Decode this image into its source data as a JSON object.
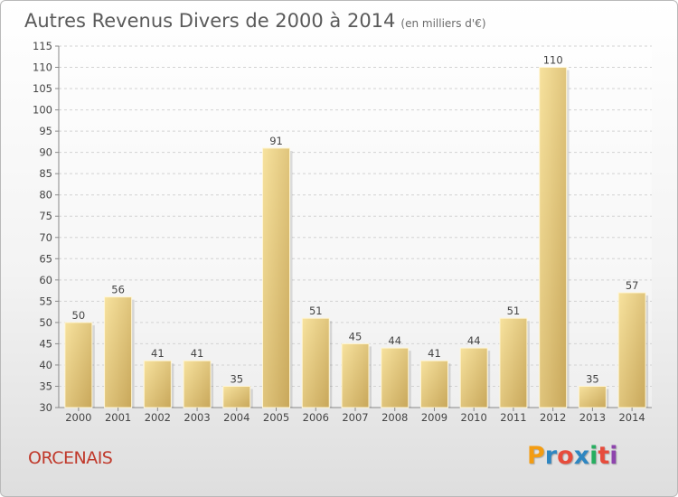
{
  "header": {
    "title": "Autres Revenus Divers de 2000 à 2014",
    "subtitle": "(en milliers d'€)"
  },
  "footer": {
    "commune": "ORCENAIS",
    "brand": "Proxiti"
  },
  "colors": {
    "bar_light": "#f7e29e",
    "bar_dark": "#c8a75a",
    "commune": "#c0392b",
    "brand_letters": [
      "#f39c12",
      "#2e86c1",
      "#e74c3c",
      "#2e86c1",
      "#27ae60",
      "#e74c3c",
      "#8e44ad"
    ]
  },
  "chart_data": {
    "type": "bar",
    "categories": [
      "2000",
      "2001",
      "2002",
      "2003",
      "2004",
      "2005",
      "2006",
      "2007",
      "2008",
      "2009",
      "2010",
      "2011",
      "2012",
      "2013",
      "2014"
    ],
    "values": [
      50,
      56,
      41,
      41,
      35,
      91,
      51,
      45,
      44,
      41,
      44,
      51,
      110,
      35,
      57
    ],
    "title": "Autres Revenus Divers de 2000 à 2014",
    "subtitle": "(en milliers d'€)",
    "xlabel": "",
    "ylabel": "",
    "ylim": [
      30,
      115
    ],
    "yticks": [
      30,
      35,
      40,
      45,
      50,
      55,
      60,
      65,
      70,
      75,
      80,
      85,
      90,
      95,
      100,
      105,
      110,
      115
    ],
    "grid": true,
    "legend": "none"
  }
}
